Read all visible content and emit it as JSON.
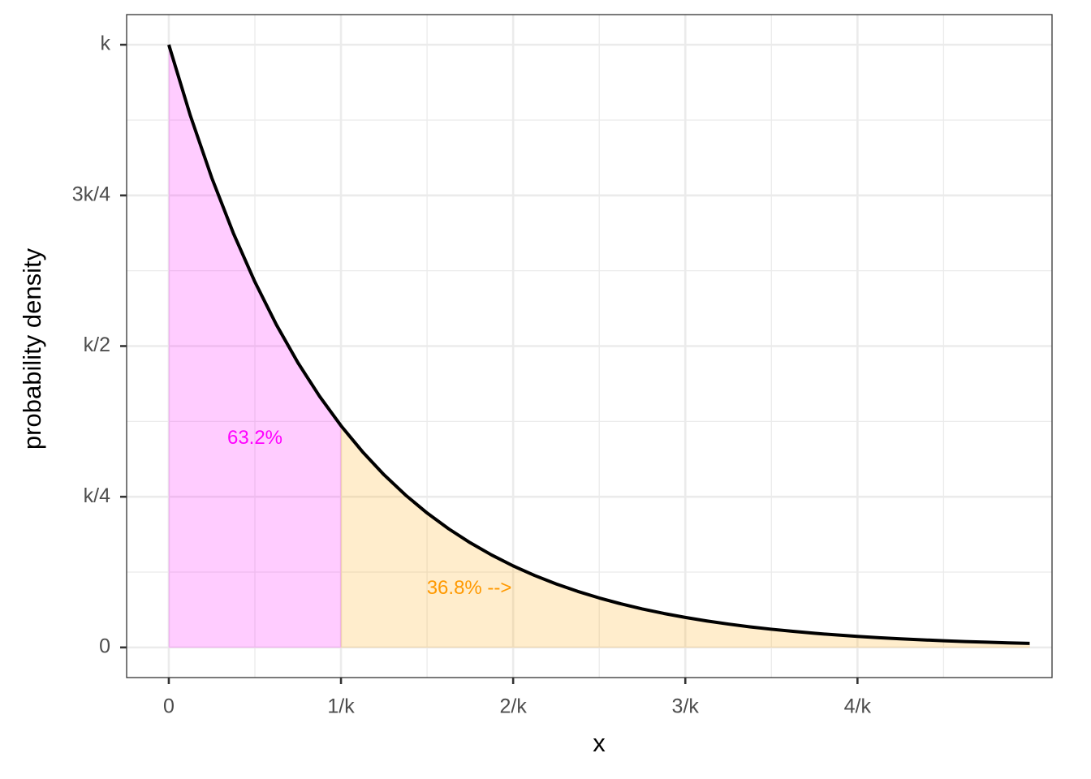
{
  "chart_data": {
    "type": "line",
    "x_label": "x",
    "y_label": "probability density",
    "x": [
      0,
      0.125,
      0.25,
      0.375,
      0.5,
      0.625,
      0.75,
      0.875,
      1,
      1.125,
      1.25,
      1.375,
      1.5,
      1.625,
      1.75,
      1.875,
      2,
      2.125,
      2.25,
      2.375,
      2.5,
      2.625,
      2.75,
      2.875,
      3,
      3.125,
      3.25,
      3.375,
      3.5,
      3.625,
      3.75,
      3.875,
      4,
      4.125,
      4.25,
      4.375,
      4.5,
      4.625,
      4.75,
      4.875,
      5
    ],
    "series": [
      {
        "color": "#000000",
        "values": [
          1,
          0.8825,
          0.7788,
          0.6873,
          0.6065,
          0.5353,
          0.4724,
          0.4169,
          0.3679,
          0.3247,
          0.2865,
          0.2528,
          0.2231,
          0.1969,
          0.1738,
          0.1534,
          0.1353,
          0.1194,
          0.1054,
          0.093,
          0.0821,
          0.0724,
          0.0639,
          0.0564,
          0.0498,
          0.0439,
          0.0388,
          0.0342,
          0.0302,
          0.0267,
          0.0235,
          0.0208,
          0.0183,
          0.0162,
          0.0143,
          0.0126,
          0.0111,
          0.0098,
          0.0087,
          0.0076,
          0.0067
        ]
      }
    ],
    "areas": [
      {
        "from": 0,
        "to": 1,
        "color": "#ff00ff"
      },
      {
        "from": 1,
        "to": 5,
        "color": "#ffa500"
      }
    ],
    "annotations": [
      {
        "text": "63.2%",
        "x": 0.5,
        "y": 0.346,
        "color": "#ff00ff"
      },
      {
        "text": "36.8% -->",
        "x": 1.745,
        "y": 0.097,
        "color": "#ff9900"
      }
    ],
    "xlim": [
      -0.245,
      5.13
    ],
    "ylim": [
      -0.05,
      1.05
    ],
    "xticks": [
      {
        "value": 0,
        "label": "0"
      },
      {
        "value": 1,
        "label": "1/k"
      },
      {
        "value": 2,
        "label": "2/k"
      },
      {
        "value": 3,
        "label": "3/k"
      },
      {
        "value": 4,
        "label": "4/k"
      }
    ],
    "yticks": [
      {
        "value": 0,
        "label": "0"
      },
      {
        "value": 0.25,
        "label": "k/4"
      },
      {
        "value": 0.5,
        "label": "k/2"
      },
      {
        "value": 0.75,
        "label": "3k/4"
      },
      {
        "value": 1,
        "label": "k"
      }
    ],
    "x_minor_ticks": [
      0.5,
      1.5,
      2.5,
      3.5,
      4.5
    ],
    "y_minor_ticks": [
      0.125,
      0.375,
      0.625,
      0.875
    ],
    "grid": true
  }
}
